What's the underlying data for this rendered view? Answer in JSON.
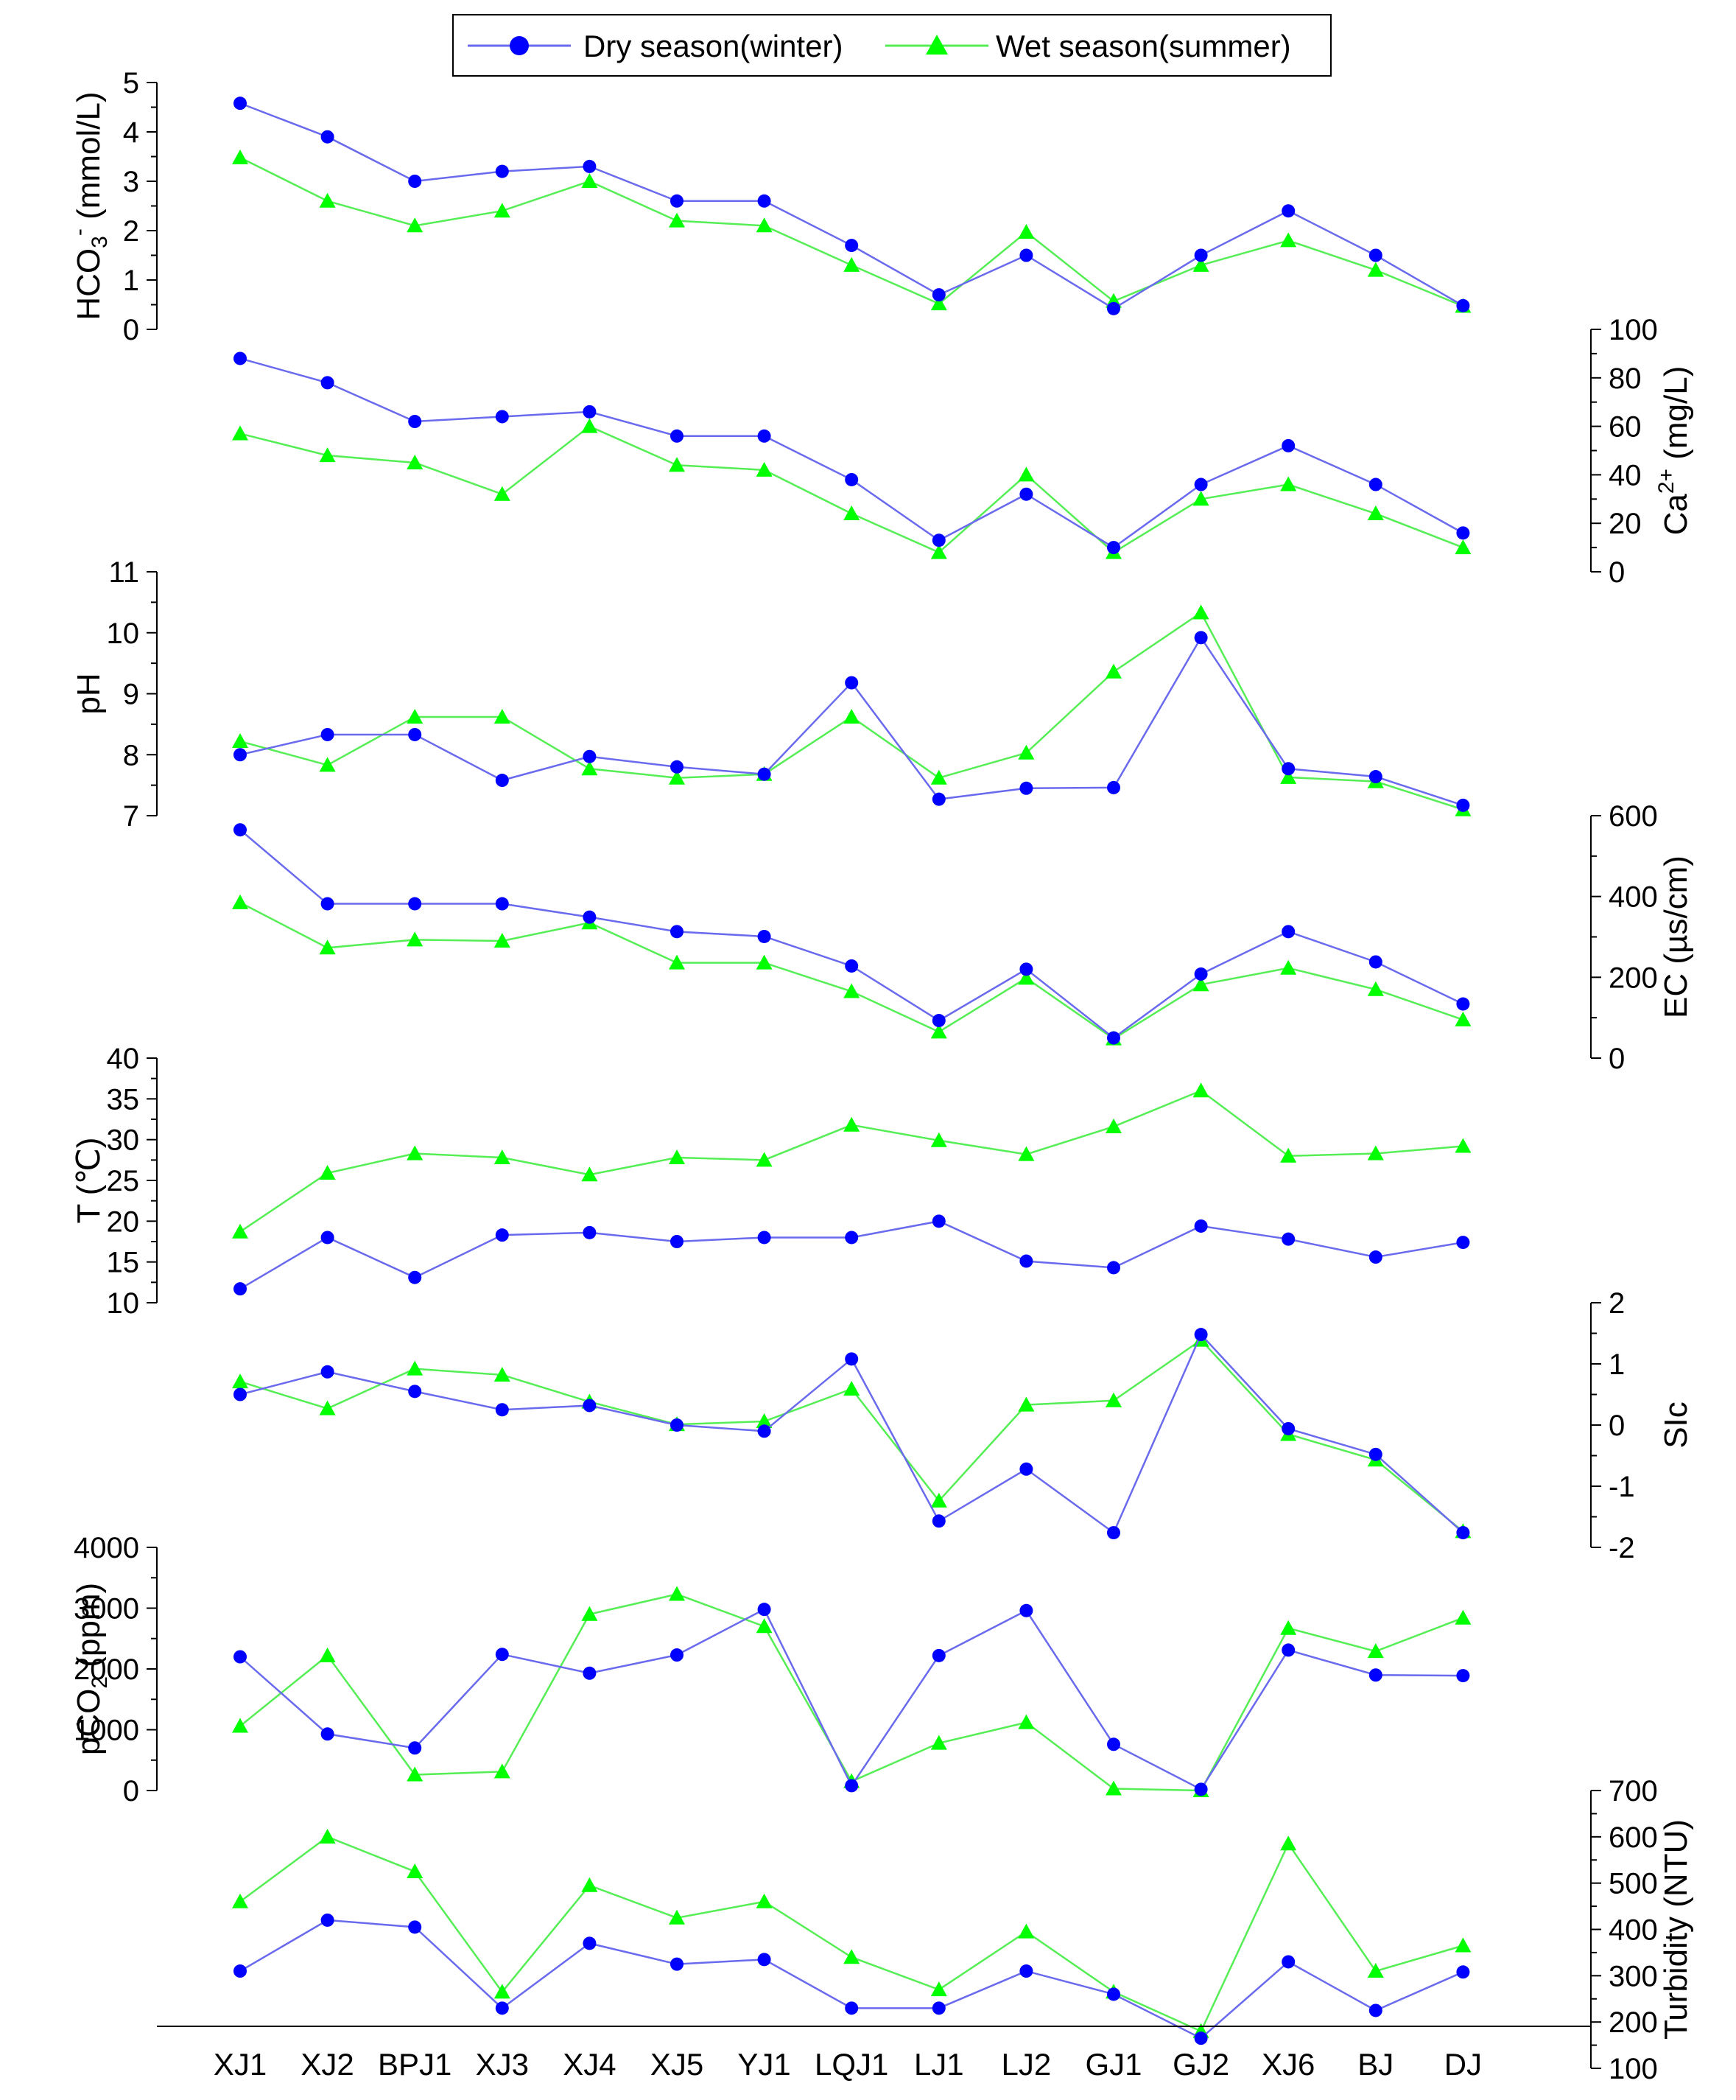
{
  "legend": {
    "placement": "top-center",
    "entries": [
      {
        "label": "Dry season(winter)",
        "marker": "circle",
        "color": "#0000ff"
      },
      {
        "label": "Wet season(summer)",
        "marker": "triangle",
        "color": "#00ff00"
      }
    ]
  },
  "colors": {
    "dry_line": "#6a6aee",
    "dry_marker": "#0000ff",
    "wet_line": "#55ee55",
    "wet_marker": "#00ff00"
  },
  "chart_data": {
    "type": "line",
    "categories": [
      "XJ1",
      "XJ2",
      "BPJ1",
      "XJ3",
      "XJ4",
      "XJ5",
      "YJ1",
      "LQJ1",
      "LJ1",
      "LJ2",
      "GJ1",
      "GJ2",
      "XJ6",
      "BJ",
      "DJ"
    ],
    "grid": false,
    "panels": [
      {
        "id": "hco3",
        "ylabel_parts": [
          "HCO",
          "3",
          "-",
          " (mmol/L)"
        ],
        "ylabel_format": "subscript-superscript",
        "axis_side": "left",
        "ylim": [
          0,
          5
        ],
        "ticks": [
          "0",
          "1",
          "2",
          "3",
          "4",
          "5"
        ],
        "series": [
          {
            "name": "Dry season(winter)",
            "values": [
              4.58,
              3.9,
              3.0,
              3.2,
              3.3,
              2.6,
              2.6,
              1.7,
              0.7,
              1.5,
              0.42,
              1.5,
              2.4,
              1.5,
              0.48
            ]
          },
          {
            "name": "Wet season(summer)",
            "values": [
              3.48,
              2.6,
              2.1,
              2.4,
              3.0,
              2.2,
              2.1,
              1.3,
              0.52,
              1.97,
              0.57,
              1.3,
              1.8,
              1.2,
              0.47
            ]
          }
        ]
      },
      {
        "id": "ca",
        "ylabel_parts": [
          "Ca",
          "2+",
          " (mg/L)"
        ],
        "ylabel_format": "superscript",
        "axis_side": "right",
        "ylim": [
          0,
          100
        ],
        "ticks": [
          "0",
          "20",
          "40",
          "60",
          "80",
          "100"
        ],
        "series": [
          {
            "name": "Dry season(winter)",
            "values": [
              88,
              78,
              62,
              64,
              66,
              56,
              56,
              38,
              13,
              32,
              10,
              36,
              52,
              36,
              16
            ]
          },
          {
            "name": "Wet season(summer)",
            "values": [
              57,
              48,
              45,
              32,
              60,
              44,
              42,
              24,
              8,
              40,
              8,
              30,
              36,
              24,
              10
            ]
          }
        ]
      },
      {
        "id": "ph",
        "ylabel": "pH",
        "axis_side": "left",
        "ylim": [
          7,
          11
        ],
        "ticks": [
          "7",
          "8",
          "9",
          "10",
          "11"
        ],
        "series": [
          {
            "name": "Dry season(winter)",
            "values": [
              8.0,
              8.33,
              8.33,
              7.58,
              7.97,
              7.8,
              7.68,
              9.18,
              7.27,
              7.45,
              7.46,
              9.92,
              7.77,
              7.64,
              7.17
            ]
          },
          {
            "name": "Wet season(summer)",
            "values": [
              8.22,
              7.83,
              8.62,
              8.62,
              7.77,
              7.62,
              7.68,
              8.62,
              7.62,
              8.03,
              9.36,
              10.33,
              7.63,
              7.56,
              7.1
            ]
          }
        ]
      },
      {
        "id": "ec",
        "ylabel": "EC (µs/cm)",
        "axis_side": "right",
        "ylim": [
          0,
          600
        ],
        "ticks": [
          "0",
          "200",
          "400",
          "600"
        ],
        "series": [
          {
            "name": "Dry season(winter)",
            "values": [
              565,
              382,
              382,
              382,
              349,
              313,
              301,
              228,
              93,
              220,
              50,
              208,
              313,
              238,
              134
            ]
          },
          {
            "name": "Wet season(summer)",
            "values": [
              385,
              273,
              293,
              290,
              335,
              236,
              236,
              165,
              65,
              198,
              48,
              182,
              223,
              170,
              95
            ]
          }
        ]
      },
      {
        "id": "temp",
        "ylabel": "T (℃)",
        "axis_side": "left",
        "ylim": [
          10,
          40
        ],
        "ticks": [
          "10",
          "15",
          "20",
          "25",
          "30",
          "35",
          "40"
        ],
        "series": [
          {
            "name": "Dry season(winter)",
            "values": [
              11.7,
              18.0,
              13.1,
              18.3,
              18.6,
              17.5,
              18.0,
              18.0,
              20.0,
              15.1,
              14.3,
              19.4,
              17.8,
              15.6,
              17.4
            ]
          },
          {
            "name": "Wet season(summer)",
            "values": [
              18.7,
              25.9,
              28.3,
              27.8,
              25.7,
              27.8,
              27.5,
              31.8,
              29.9,
              28.2,
              31.6,
              36.0,
              28.0,
              28.3,
              29.2
            ]
          }
        ]
      },
      {
        "id": "sic",
        "ylabel": "SIc",
        "axis_side": "right",
        "ylim": [
          -2,
          2
        ],
        "ticks": [
          "-2",
          "-1",
          "0",
          "1",
          "2"
        ],
        "series": [
          {
            "name": "Dry season(winter)",
            "values": [
              0.5,
              0.87,
              0.55,
              0.25,
              0.32,
              0.0,
              -0.1,
              1.08,
              -1.57,
              -0.72,
              -1.76,
              1.48,
              -0.06,
              -0.48,
              -1.76
            ]
          },
          {
            "name": "Wet season(summer)",
            "values": [
              0.71,
              0.27,
              0.92,
              0.82,
              0.38,
              0.01,
              0.06,
              0.59,
              -1.24,
              0.33,
              0.4,
              1.39,
              -0.15,
              -0.57,
              -1.74
            ]
          }
        ]
      },
      {
        "id": "pco2",
        "ylabel_parts": [
          "pCO",
          "2",
          " (ppm)"
        ],
        "ylabel_format": "subscript",
        "axis_side": "left",
        "ylim": [
          0,
          4000
        ],
        "ticks": [
          "0",
          "1000",
          "2000",
          "3000",
          "4000"
        ],
        "series": [
          {
            "name": "Dry season(winter)",
            "values": [
              2200,
              930,
              700,
              2240,
              1930,
              2230,
              2980,
              80,
              2220,
              2960,
              760,
              20,
              2310,
              1900,
              1890
            ]
          },
          {
            "name": "Wet season(summer)",
            "values": [
              1060,
              2220,
              260,
              310,
              2900,
              3230,
              2700,
              150,
              780,
              1120,
              30,
              0,
              2670,
              2290,
              2840
            ]
          }
        ]
      },
      {
        "id": "turbidity",
        "ylabel": "Turbidity (NTU)",
        "axis_side": "right",
        "ylim": [
          100,
          700
        ],
        "ticks": [
          "100",
          "200",
          "300",
          "400",
          "500",
          "600",
          "700"
        ],
        "series": [
          {
            "name": "Dry season(winter)",
            "values": [
              310,
              420,
              405,
              230,
              370,
              325,
              335,
              230,
              230,
              310,
              260,
              165,
              330,
              225,
              308
            ]
          },
          {
            "name": "Wet season(summer)",
            "values": [
              460,
              600,
              525,
              265,
              495,
              425,
              460,
              340,
              270,
              395,
              265,
              180,
              585,
              310,
              365
            ]
          }
        ]
      }
    ]
  }
}
